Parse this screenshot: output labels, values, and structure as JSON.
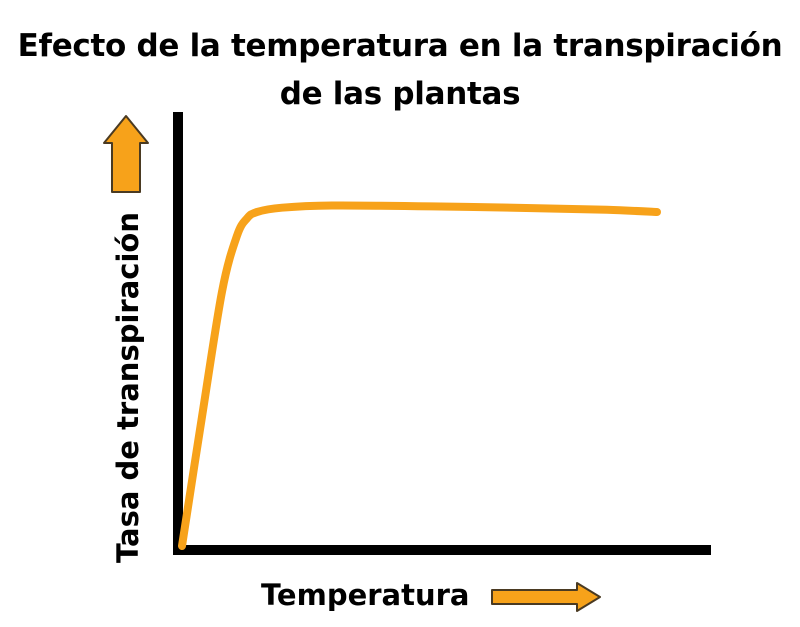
{
  "title_line1": "Efecto de la temperatura en la transpiración",
  "title_line2": "de las plantas",
  "colors": {
    "accent": "#F7A21A",
    "axis": "#000000"
  },
  "chart_data": {
    "type": "line",
    "title": "Efecto de la temperatura en la transpiración de las plantas",
    "xlabel": "Temperatura",
    "ylabel": "Tasa de transpiración",
    "xlim": [
      0,
      100
    ],
    "ylim": [
      0,
      100
    ],
    "grid": false,
    "axis_arrows": [
      "x-arrow-icon",
      "y-arrow-icon"
    ],
    "series": [
      {
        "color": "#F7A21A",
        "x": [
          0,
          4,
          8,
          11,
          13,
          15,
          20,
          30,
          50,
          70,
          85,
          95
        ],
        "y": [
          0,
          30,
          59,
          72,
          76,
          77.5,
          78.5,
          79,
          78.8,
          78.4,
          78,
          77.5
        ]
      }
    ]
  }
}
